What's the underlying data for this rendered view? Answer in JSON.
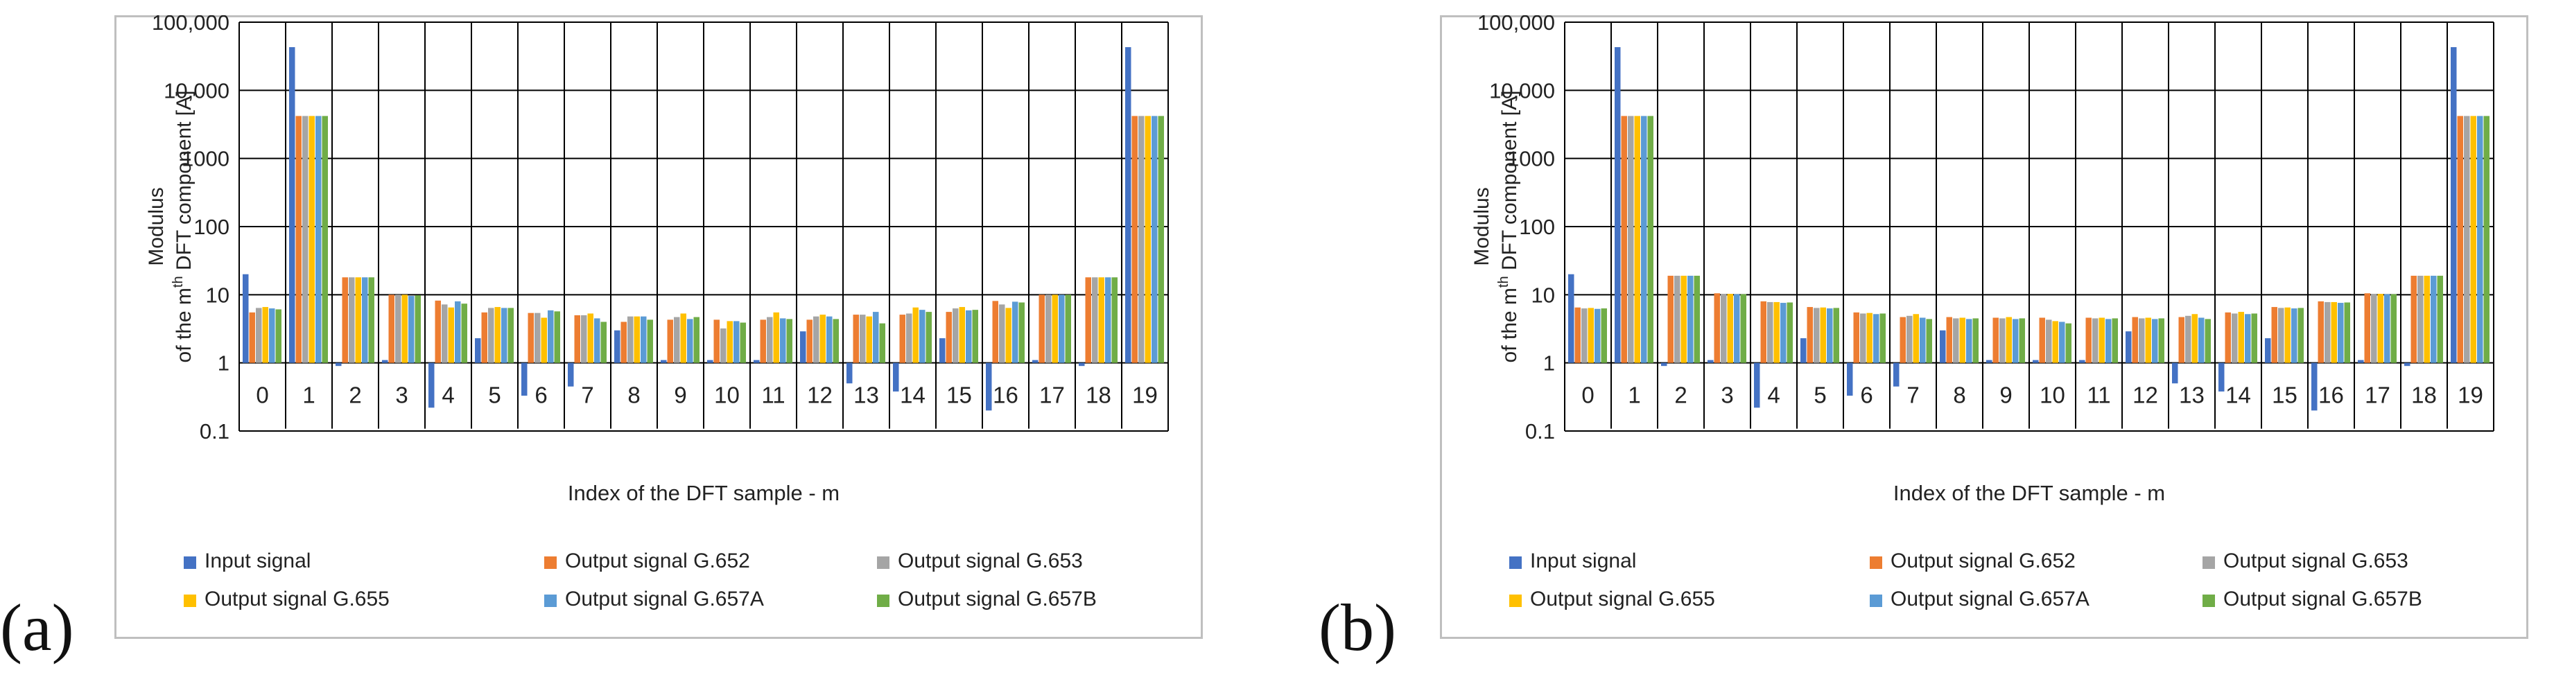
{
  "panels": [
    {
      "label": "(a)"
    },
    {
      "label": "(b)"
    }
  ],
  "colors": {
    "Input signal": "#4472c4",
    "Output signal G.652": "#ed7d31",
    "Output signal G.653": "#a5a5a5",
    "Output signal G.655": "#ffc000",
    "Output signal G.657A": "#5b9bd5",
    "Output signal G.657B": "#70ad47"
  },
  "chart_data": [
    {
      "type": "bar",
      "yscale": "log",
      "ylim": [
        0.1,
        100000
      ],
      "yticks": [
        "0.1",
        "1",
        "10",
        "100",
        "1000",
        "10,000",
        "100,000"
      ],
      "xlabel": "Index of the DFT sample - m",
      "ylabel_line1": "Modulus",
      "ylabel_line2": "of the m",
      "ylabel_sup": "th",
      "ylabel_line2_rest": " DFT component [A]",
      "categories": [
        "0",
        "1",
        "2",
        "3",
        "4",
        "5",
        "6",
        "7",
        "8",
        "9",
        "10",
        "11",
        "12",
        "13",
        "14",
        "15",
        "16",
        "17",
        "18",
        "19"
      ],
      "legend": [
        "Input signal",
        "Output signal G.652",
        "Output signal G.653",
        "Output signal G.655",
        "Output signal G.657A",
        "Output signal G.657B"
      ],
      "series": [
        {
          "name": "Input signal",
          "values": [
            20,
            43000,
            0.9,
            1.1,
            0.22,
            2.3,
            0.33,
            0.45,
            3.0,
            1.1,
            1.1,
            1.1,
            2.9,
            0.5,
            0.38,
            2.3,
            0.2,
            1.1,
            0.9,
            43000
          ]
        },
        {
          "name": "Output signal G.652",
          "values": [
            5.5,
            4200,
            18,
            10,
            8.2,
            5.5,
            5.4,
            5.0,
            4.0,
            4.3,
            4.3,
            4.3,
            4.3,
            5.1,
            5.1,
            5.6,
            8.1,
            10,
            18,
            4200
          ]
        },
        {
          "name": "Output signal G.653",
          "values": [
            6.4,
            4200,
            18,
            10,
            7.2,
            6.4,
            5.4,
            5.0,
            4.8,
            4.7,
            3.2,
            4.7,
            4.8,
            5.1,
            5.3,
            6.3,
            7.2,
            10,
            18,
            4200
          ]
        },
        {
          "name": "Output signal G.655",
          "values": [
            6.6,
            4200,
            18,
            10,
            6.5,
            6.6,
            4.6,
            5.3,
            4.8,
            5.3,
            4.1,
            5.5,
            5.1,
            4.8,
            6.5,
            6.6,
            6.4,
            10,
            18,
            4200
          ]
        },
        {
          "name": "Output signal G.657A",
          "values": [
            6.3,
            4200,
            18,
            9.6,
            8.0,
            6.4,
            5.9,
            4.5,
            4.8,
            4.4,
            4.1,
            4.5,
            4.8,
            5.6,
            6.0,
            5.9,
            7.9,
            10,
            18,
            4200
          ]
        },
        {
          "name": "Output signal G.657B",
          "values": [
            6.1,
            4200,
            18,
            9.8,
            7.4,
            6.4,
            5.7,
            4.0,
            4.3,
            4.7,
            3.9,
            4.4,
            4.4,
            3.8,
            5.6,
            6.0,
            7.7,
            10,
            18,
            4200
          ]
        }
      ]
    },
    {
      "type": "bar",
      "yscale": "log",
      "ylim": [
        0.1,
        100000
      ],
      "yticks": [
        "0.1",
        "1",
        "10",
        "100",
        "1000",
        "10,000",
        "100,000"
      ],
      "xlabel": "Index of the DFT sample - m",
      "ylabel_line1": "Modulus",
      "ylabel_line2": "of the m",
      "ylabel_sup": "th",
      "ylabel_line2_rest": " DFT component [A]",
      "categories": [
        "0",
        "1",
        "2",
        "3",
        "4",
        "5",
        "6",
        "7",
        "8",
        "9",
        "10",
        "11",
        "12",
        "13",
        "14",
        "15",
        "16",
        "17",
        "18",
        "19"
      ],
      "legend": [
        "Input signal",
        "Output signal G.652",
        "Output signal G.653",
        "Output signal G.655",
        "Output signal G.657A",
        "Output signal G.657B"
      ],
      "series": [
        {
          "name": "Input signal",
          "values": [
            20,
            43000,
            0.9,
            1.1,
            0.22,
            2.3,
            0.33,
            0.45,
            3.0,
            1.1,
            1.1,
            1.1,
            2.9,
            0.5,
            0.38,
            2.3,
            0.2,
            1.1,
            0.9,
            43000
          ]
        },
        {
          "name": "Output signal G.652",
          "values": [
            6.5,
            4200,
            19,
            10.5,
            8.0,
            6.6,
            5.5,
            4.7,
            4.7,
            4.6,
            4.6,
            4.6,
            4.7,
            4.7,
            5.5,
            6.6,
            8.0,
            10.5,
            19,
            4200
          ]
        },
        {
          "name": "Output signal G.653",
          "values": [
            6.3,
            4200,
            19,
            10.3,
            7.8,
            6.4,
            5.3,
            4.9,
            4.5,
            4.5,
            4.3,
            4.5,
            4.5,
            4.9,
            5.3,
            6.4,
            7.8,
            10.3,
            19,
            4200
          ]
        },
        {
          "name": "Output signal G.655",
          "values": [
            6.4,
            4200,
            19,
            10.3,
            7.8,
            6.5,
            5.4,
            5.2,
            4.6,
            4.7,
            4.1,
            4.6,
            4.6,
            5.2,
            5.6,
            6.5,
            7.8,
            10.3,
            19,
            4200
          ]
        },
        {
          "name": "Output signal G.657A",
          "values": [
            6.2,
            4200,
            19,
            10.2,
            7.6,
            6.3,
            5.2,
            4.6,
            4.4,
            4.4,
            4.0,
            4.4,
            4.4,
            4.6,
            5.2,
            6.3,
            7.6,
            10.2,
            19,
            4200
          ]
        },
        {
          "name": "Output signal G.657B",
          "values": [
            6.3,
            4200,
            19,
            10.2,
            7.7,
            6.4,
            5.3,
            4.4,
            4.5,
            4.5,
            3.8,
            4.5,
            4.5,
            4.4,
            5.3,
            6.4,
            7.7,
            10.2,
            19,
            4200
          ]
        }
      ]
    }
  ]
}
